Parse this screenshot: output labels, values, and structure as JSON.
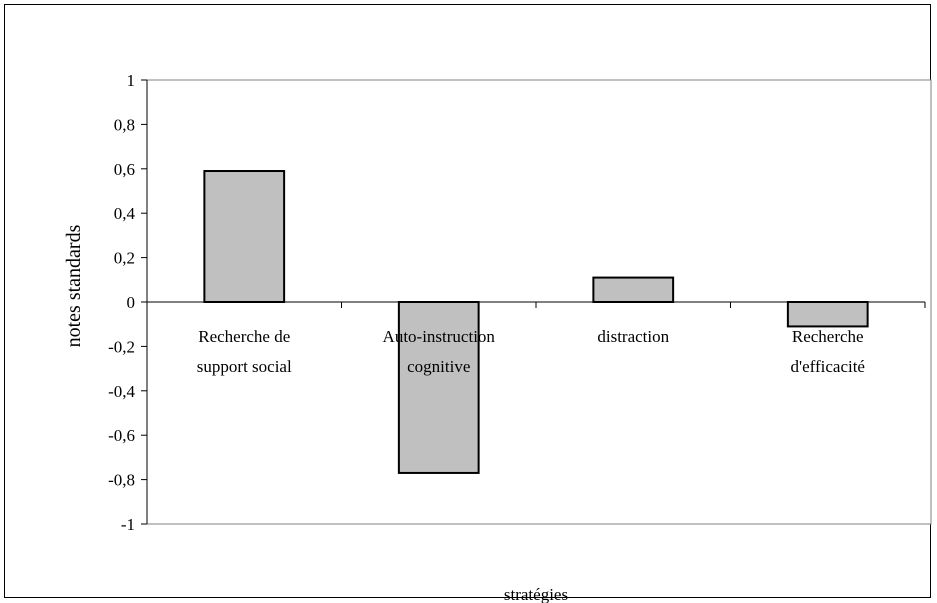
{
  "chart_data": {
    "type": "bar",
    "categories": [
      [
        "Recherche de",
        "support social"
      ],
      [
        "Auto-instruction",
        "cognitive"
      ],
      [
        "distraction"
      ],
      [
        "Recherche",
        "d'efficacité"
      ]
    ],
    "values": [
      0.59,
      -0.77,
      0.11,
      -0.11
    ],
    "title": "",
    "xlabel": "stratégies",
    "ylabel": "notes standards",
    "ylim": [
      -1,
      1
    ],
    "yticks": [
      1,
      0.8,
      0.6,
      0.4,
      0.2,
      0,
      -0.2,
      -0.4,
      -0.6,
      -0.8,
      -1
    ],
    "ytick_labels": [
      "1",
      "0,8",
      "0,6",
      "0,4",
      "0,2",
      "0",
      "-0,2",
      "-0,4",
      "-0,6",
      "-0,8",
      "-1"
    ],
    "bar_color": "#c0c0c0",
    "bar_edge_color": "#000000",
    "grid": false,
    "legend": "none"
  }
}
